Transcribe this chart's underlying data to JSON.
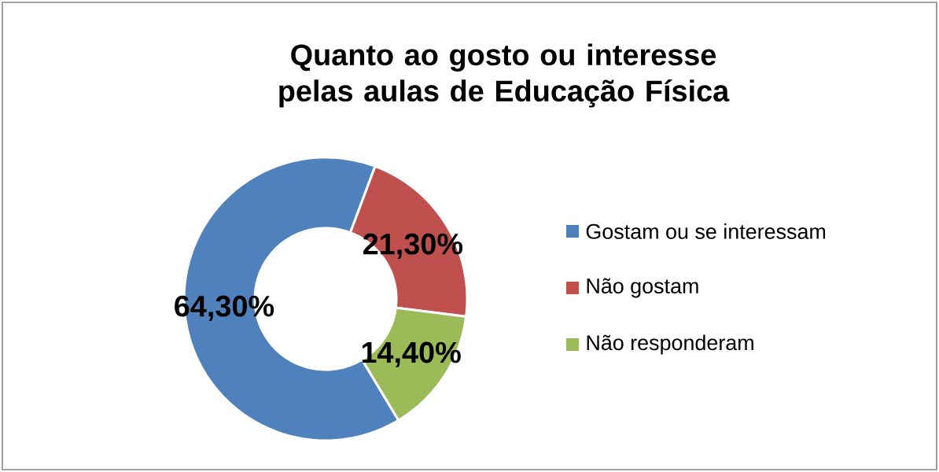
{
  "chart_data": {
    "type": "donut",
    "title": "Quanto ao gosto ou interesse pelas aulas de Educação Física",
    "categories": [
      "Gostam ou se interessam",
      "Não gostam",
      "Não responderam"
    ],
    "values": [
      64.3,
      21.3,
      14.4
    ],
    "colors": [
      "#4f81bd",
      "#c0504d",
      "#9bbb59"
    ],
    "value_labels": [
      "64,30%",
      "21,30%",
      "14,40%"
    ],
    "legend": "right"
  }
}
